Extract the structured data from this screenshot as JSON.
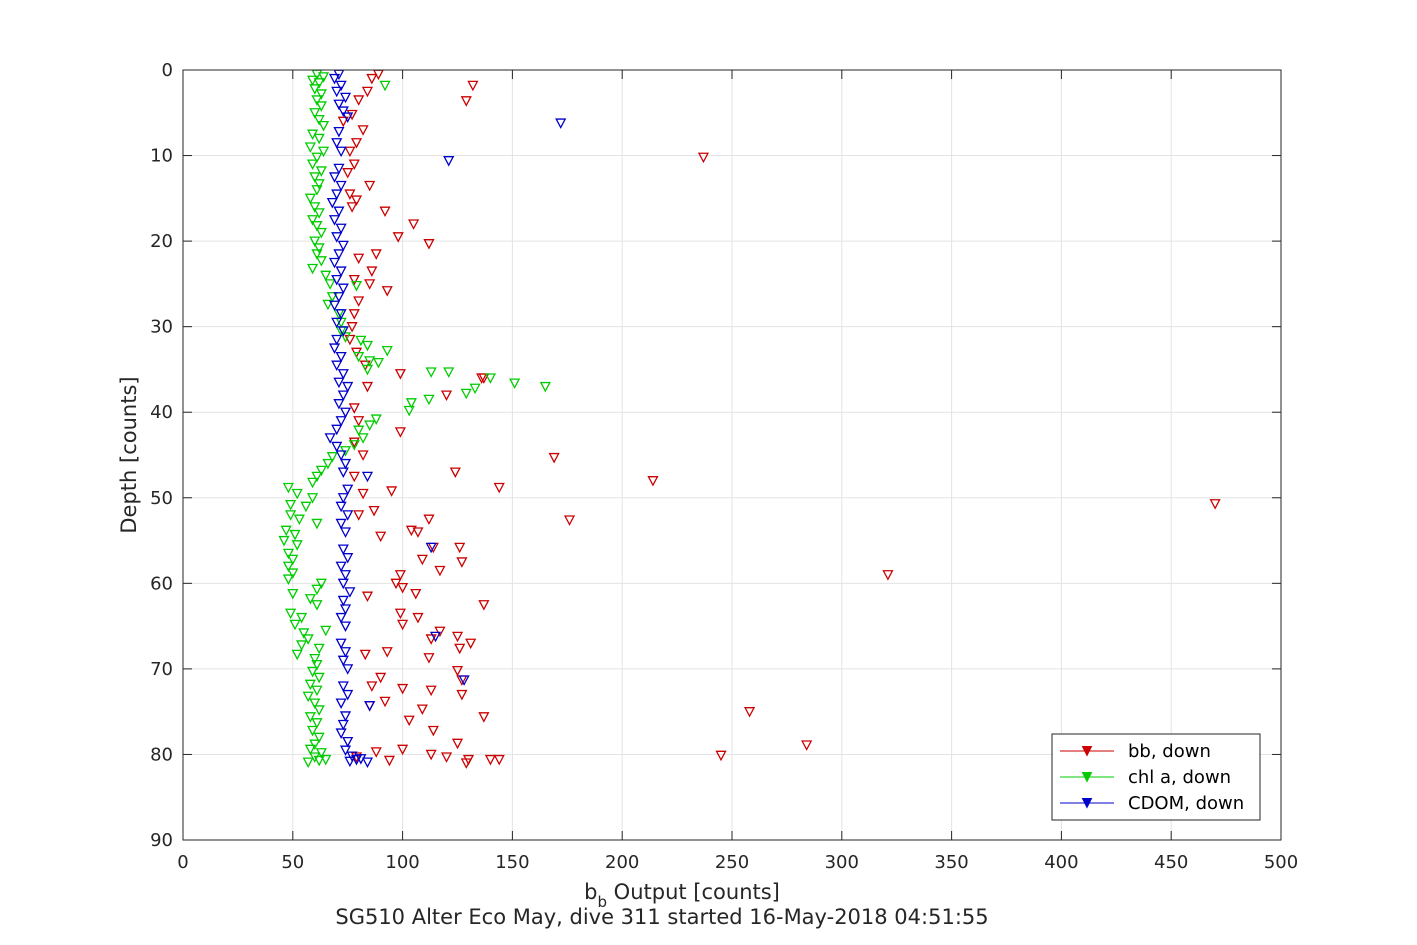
{
  "chart_data": {
    "type": "scatter",
    "title": "SG510 Alter Eco May, dive 311 started 16-May-2018 04:51:55",
    "xlabel_main": "b",
    "xlabel_sub": "b",
    "xlabel_rest": " Output [counts]",
    "ylabel": "Depth [counts]",
    "xlim": [
      0,
      500
    ],
    "ylim": [
      0,
      90
    ],
    "y_reversed": true,
    "grid": true,
    "x_ticks": [
      0,
      50,
      100,
      150,
      200,
      250,
      300,
      350,
      400,
      450,
      500
    ],
    "y_ticks": [
      0,
      10,
      20,
      30,
      40,
      50,
      60,
      70,
      80,
      90
    ],
    "legend_position": "bottom-right",
    "marker": "down-triangle",
    "series": [
      {
        "name": "bb, down",
        "color": "#cc0000",
        "points": [
          [
            89,
            0.5
          ],
          [
            86,
            1
          ],
          [
            132,
            1.8
          ],
          [
            129,
            3.6
          ],
          [
            84,
            2.5
          ],
          [
            80,
            3.5
          ],
          [
            77,
            5.2
          ],
          [
            73,
            6
          ],
          [
            82,
            7
          ],
          [
            79,
            8.5
          ],
          [
            76,
            9.5
          ],
          [
            237,
            10.2
          ],
          [
            78,
            11
          ],
          [
            75,
            12
          ],
          [
            85,
            13.5
          ],
          [
            76,
            14.5
          ],
          [
            79,
            15.2
          ],
          [
            77,
            16
          ],
          [
            92,
            16.5
          ],
          [
            105,
            18
          ],
          [
            98,
            19.5
          ],
          [
            112,
            20.3
          ],
          [
            88,
            21.5
          ],
          [
            80,
            22
          ],
          [
            86,
            23.5
          ],
          [
            78,
            24.5
          ],
          [
            85,
            25
          ],
          [
            93,
            25.8
          ],
          [
            80,
            27
          ],
          [
            78,
            28.5
          ],
          [
            77,
            30
          ],
          [
            76,
            31.5
          ],
          [
            79,
            33
          ],
          [
            83,
            34.5
          ],
          [
            99,
            35.5
          ],
          [
            137,
            36
          ],
          [
            136,
            36
          ],
          [
            84,
            37
          ],
          [
            120,
            38
          ],
          [
            78,
            39.5
          ],
          [
            80,
            41
          ],
          [
            99,
            42.3
          ],
          [
            78,
            43.5
          ],
          [
            82,
            45
          ],
          [
            169,
            45.3
          ],
          [
            124,
            47
          ],
          [
            78,
            47.5
          ],
          [
            214,
            48
          ],
          [
            144,
            48.8
          ],
          [
            82,
            49.5
          ],
          [
            95,
            49.2
          ],
          [
            470,
            50.7
          ],
          [
            87,
            51.5
          ],
          [
            80,
            52
          ],
          [
            112,
            52.5
          ],
          [
            176,
            52.6
          ],
          [
            104,
            53.8
          ],
          [
            90,
            54.5
          ],
          [
            107,
            54
          ],
          [
            126,
            55.8
          ],
          [
            114,
            55.8
          ],
          [
            109,
            57.2
          ],
          [
            127,
            57.5
          ],
          [
            117,
            58.5
          ],
          [
            99,
            59
          ],
          [
            321,
            59
          ],
          [
            97,
            60
          ],
          [
            100,
            60.5
          ],
          [
            106,
            61.2
          ],
          [
            84,
            61.5
          ],
          [
            137,
            62.5
          ],
          [
            99,
            63.5
          ],
          [
            107,
            64
          ],
          [
            100,
            64.8
          ],
          [
            117,
            65.6
          ],
          [
            125,
            66.2
          ],
          [
            113,
            66.5
          ],
          [
            131,
            67
          ],
          [
            126,
            67.6
          ],
          [
            93,
            68
          ],
          [
            83,
            68.3
          ],
          [
            112,
            68.7
          ],
          [
            125,
            70.2
          ],
          [
            90,
            71
          ],
          [
            127,
            71.3
          ],
          [
            86,
            72
          ],
          [
            100,
            72.3
          ],
          [
            113,
            72.5
          ],
          [
            127,
            73
          ],
          [
            92,
            73.8
          ],
          [
            85,
            74.3
          ],
          [
            109,
            74.7
          ],
          [
            258,
            75
          ],
          [
            137,
            75.6
          ],
          [
            103,
            76
          ],
          [
            114,
            77.2
          ],
          [
            125,
            78.7
          ],
          [
            284,
            78.9
          ],
          [
            100,
            79.4
          ],
          [
            88,
            79.7
          ],
          [
            113,
            80
          ],
          [
            245,
            80.1
          ],
          [
            79,
            80.3
          ],
          [
            94,
            80.7
          ],
          [
            120,
            80.3
          ],
          [
            130,
            80.6
          ],
          [
            140,
            80.6
          ],
          [
            144,
            80.6
          ],
          [
            129,
            81
          ]
        ]
      },
      {
        "name": "chl a, down",
        "color": "#00cc00",
        "points": [
          [
            61,
            0.5
          ],
          [
            64,
            0.8
          ],
          [
            59,
            1.2
          ],
          [
            62,
            1.5
          ],
          [
            92,
            1.8
          ],
          [
            60,
            2.2
          ],
          [
            63,
            2.8
          ],
          [
            61,
            3.5
          ],
          [
            63,
            4.2
          ],
          [
            60,
            5
          ],
          [
            62,
            5.8
          ],
          [
            64,
            6.5
          ],
          [
            59,
            7.5
          ],
          [
            62,
            8
          ],
          [
            58,
            9
          ],
          [
            64,
            9.5
          ],
          [
            61,
            10.2
          ],
          [
            59,
            11
          ],
          [
            63,
            11.8
          ],
          [
            60,
            12.5
          ],
          [
            62,
            13.3
          ],
          [
            61,
            14
          ],
          [
            58,
            15
          ],
          [
            60,
            16
          ],
          [
            62,
            16.7
          ],
          [
            59,
            17.5
          ],
          [
            61,
            18.2
          ],
          [
            63,
            19
          ],
          [
            60,
            20
          ],
          [
            62,
            20.8
          ],
          [
            61,
            21.5
          ],
          [
            63,
            22.3
          ],
          [
            59,
            23.2
          ],
          [
            65,
            24
          ],
          [
            67,
            25
          ],
          [
            79,
            25.2
          ],
          [
            68,
            26.5
          ],
          [
            66,
            27.4
          ],
          [
            71,
            28.5
          ],
          [
            72,
            29.5
          ],
          [
            72,
            30.5
          ],
          [
            74,
            31.2
          ],
          [
            81,
            31.6
          ],
          [
            84,
            32.2
          ],
          [
            93,
            32.8
          ],
          [
            80,
            33.5
          ],
          [
            85,
            34
          ],
          [
            89,
            34.2
          ],
          [
            84,
            35
          ],
          [
            113,
            35.3
          ],
          [
            121,
            35.3
          ],
          [
            140,
            36
          ],
          [
            151,
            36.6
          ],
          [
            165,
            37
          ],
          [
            133,
            37.2
          ],
          [
            129,
            37.8
          ],
          [
            112,
            38.5
          ],
          [
            104,
            38.9
          ],
          [
            103,
            39.8
          ],
          [
            88,
            40.8
          ],
          [
            85,
            41.5
          ],
          [
            80,
            42.1
          ],
          [
            82,
            43
          ],
          [
            78,
            43.8
          ],
          [
            74,
            44.5
          ],
          [
            68,
            45.2
          ],
          [
            66,
            46
          ],
          [
            63,
            46.8
          ],
          [
            61,
            47.5
          ],
          [
            59,
            48.2
          ],
          [
            48,
            48.8
          ],
          [
            52,
            49.5
          ],
          [
            59,
            50
          ],
          [
            49,
            50.8
          ],
          [
            56,
            51
          ],
          [
            49,
            52
          ],
          [
            53,
            52.5
          ],
          [
            61,
            53
          ],
          [
            47,
            53.8
          ],
          [
            51,
            54.3
          ],
          [
            46,
            55
          ],
          [
            52,
            55.5
          ],
          [
            48,
            56.5
          ],
          [
            50,
            57.2
          ],
          [
            48,
            58
          ],
          [
            50,
            58.8
          ],
          [
            48,
            59.5
          ],
          [
            63,
            60
          ],
          [
            61,
            60.7
          ],
          [
            50,
            61.2
          ],
          [
            58,
            61.8
          ],
          [
            61,
            62.5
          ],
          [
            49,
            63.5
          ],
          [
            54,
            64
          ],
          [
            51,
            64.8
          ],
          [
            65,
            65.5
          ],
          [
            55,
            65.8
          ],
          [
            57,
            66.5
          ],
          [
            54,
            67.2
          ],
          [
            62,
            67.6
          ],
          [
            52,
            68.3
          ],
          [
            60,
            68.8
          ],
          [
            61,
            69.5
          ],
          [
            59,
            70.3
          ],
          [
            62,
            71
          ],
          [
            58,
            71.8
          ],
          [
            61,
            72.5
          ],
          [
            57,
            73.2
          ],
          [
            60,
            74
          ],
          [
            62,
            74.8
          ],
          [
            58,
            75.6
          ],
          [
            61,
            76.3
          ],
          [
            59,
            77.2
          ],
          [
            62,
            78
          ],
          [
            60,
            78.8
          ],
          [
            58,
            79.4
          ],
          [
            63,
            79.8
          ],
          [
            60,
            80.3
          ],
          [
            62,
            80.7
          ],
          [
            57,
            80.9
          ],
          [
            65,
            80.6
          ]
        ]
      },
      {
        "name": "CDOM, down",
        "color": "#0000cc",
        "points": [
          [
            71,
            0.5
          ],
          [
            69,
            1
          ],
          [
            72,
            1.8
          ],
          [
            70,
            2.5
          ],
          [
            74,
            3.2
          ],
          [
            71,
            4
          ],
          [
            73,
            4.8
          ],
          [
            75,
            5.5
          ],
          [
            172,
            6.2
          ],
          [
            71,
            7.2
          ],
          [
            70,
            8.5
          ],
          [
            72,
            9.5
          ],
          [
            121,
            10.6
          ],
          [
            71,
            11.5
          ],
          [
            69,
            12.5
          ],
          [
            72,
            13.5
          ],
          [
            70,
            14.5
          ],
          [
            68,
            15.5
          ],
          [
            71,
            16.5
          ],
          [
            69,
            17.5
          ],
          [
            72,
            18.5
          ],
          [
            70,
            19.5
          ],
          [
            73,
            20.5
          ],
          [
            71,
            21.5
          ],
          [
            69,
            22.5
          ],
          [
            72,
            23.5
          ],
          [
            70,
            24.5
          ],
          [
            73,
            25.5
          ],
          [
            71,
            26.5
          ],
          [
            69,
            27.5
          ],
          [
            72,
            28.5
          ],
          [
            70,
            29.5
          ],
          [
            73,
            30.5
          ],
          [
            70,
            31.5
          ],
          [
            69,
            32.5
          ],
          [
            72,
            33.5
          ],
          [
            70,
            34.5
          ],
          [
            73,
            35.5
          ],
          [
            71,
            36.5
          ],
          [
            75,
            37
          ],
          [
            73,
            38
          ],
          [
            71,
            39
          ],
          [
            74,
            40
          ],
          [
            72,
            41
          ],
          [
            70,
            42
          ],
          [
            67,
            43
          ],
          [
            70,
            44
          ],
          [
            72,
            45
          ],
          [
            74,
            46
          ],
          [
            73,
            47
          ],
          [
            84,
            47.5
          ],
          [
            75,
            49
          ],
          [
            73,
            50
          ],
          [
            72,
            51
          ],
          [
            75,
            52
          ],
          [
            72,
            53
          ],
          [
            74,
            54
          ],
          [
            113,
            55.8
          ],
          [
            73,
            56
          ],
          [
            75,
            57
          ],
          [
            72,
            58
          ],
          [
            74,
            59
          ],
          [
            73,
            60
          ],
          [
            76,
            61
          ],
          [
            73,
            62
          ],
          [
            74,
            63
          ],
          [
            72,
            64
          ],
          [
            74,
            65
          ],
          [
            115,
            66.2
          ],
          [
            72,
            67
          ],
          [
            74,
            68
          ],
          [
            73,
            69
          ],
          [
            75,
            70
          ],
          [
            128,
            71.3
          ],
          [
            73,
            72
          ],
          [
            75,
            73
          ],
          [
            72,
            74
          ],
          [
            85,
            74.3
          ],
          [
            74,
            75.5
          ],
          [
            73,
            76.5
          ],
          [
            72,
            77.5
          ],
          [
            75,
            78.5
          ],
          [
            74,
            79.5
          ],
          [
            77,
            80.2
          ],
          [
            79,
            80.6
          ],
          [
            84,
            80.9
          ],
          [
            81,
            80.5
          ],
          [
            76,
            80.8
          ]
        ]
      }
    ]
  }
}
